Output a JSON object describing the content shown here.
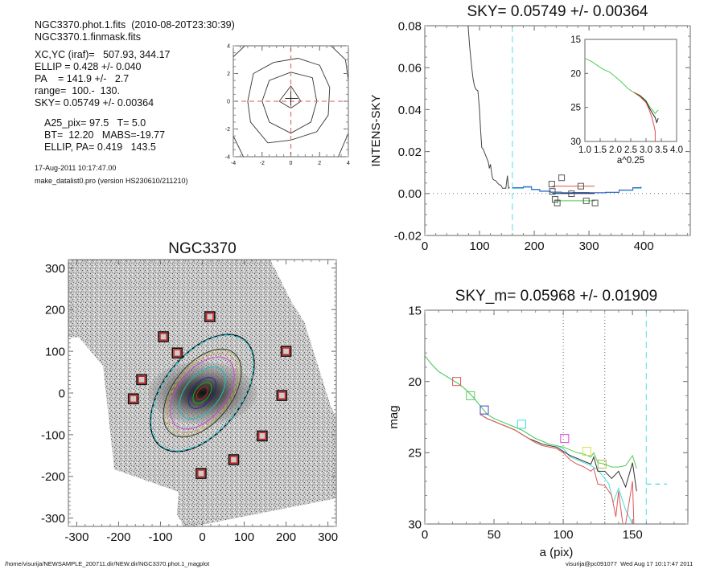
{
  "info_panel": {
    "line1": "NGC3370.phot.1.fits  (2010-08-20T23:30:39)",
    "line2": "NGC3370.1.finmask.fits",
    "params": [
      "XC,YC (iraf)=   507.93, 344.17",
      "ELLIP = 0.428 +/- 0.040",
      "PA    = 141.9 +/-   2.7",
      "range=  100.-  130.",
      "SKY= 0.05749 +/- 0.00364"
    ],
    "derived": [
      "A25_pix= 97.5   T= 5.0",
      "BT=  12.20   MABS=-19.77",
      "ELLIP, PA= 0.419   143.5"
    ],
    "date": "17-Aug-2011 10:17:47.00",
    "version": "make_datalist0.pro (version HS230610/211210)"
  },
  "footer": {
    "path": "/home/visurija/NEWSAMPLE_200711.dir/NEW.dir/NGC3370.phot.1_magplot",
    "user_time": "visurija@pc091077  Wed Aug 17 10:17:47 2011"
  },
  "chart_data": [
    {
      "id": "center-contour",
      "type": "contour",
      "title": "",
      "xlim": [
        -4,
        4
      ],
      "ylim": [
        -4,
        4
      ],
      "xticks": [
        "-4",
        "-2",
        "0",
        "2",
        "4"
      ],
      "yticks": [
        "-4",
        "-2",
        "0",
        "2",
        "4"
      ],
      "center_cross": [
        0,
        0
      ],
      "contours": [
        [
          [
            -0.8,
            0
          ],
          [
            0,
            1.1
          ],
          [
            0.7,
            0
          ],
          [
            0,
            -0.5
          ]
        ],
        [
          [
            -2,
            0
          ],
          [
            -1.5,
            1.5
          ],
          [
            0,
            2.1
          ],
          [
            1.5,
            1.7
          ],
          [
            1.8,
            0
          ],
          [
            1.4,
            -1.5
          ],
          [
            0,
            -2.3
          ],
          [
            -1.5,
            -1.5
          ]
        ],
        [
          [
            -3,
            0
          ],
          [
            -2.6,
            2
          ],
          [
            -1.2,
            2.8
          ],
          [
            0.5,
            3.1
          ],
          [
            2,
            2.6
          ],
          [
            2.7,
            1
          ],
          [
            2.6,
            -1
          ],
          [
            1.8,
            -2.2
          ],
          [
            0,
            -2.8
          ],
          [
            -1.6,
            -3
          ],
          [
            -2.8,
            -1.5
          ]
        ],
        [
          [
            -4,
            3.2
          ],
          [
            -3.2,
            4
          ]
        ],
        [
          [
            2.8,
            4
          ],
          [
            3.8,
            3
          ],
          [
            4,
            1.5
          ]
        ],
        [
          [
            -4,
            -2.5
          ],
          [
            -3.3,
            -4
          ]
        ],
        [
          [
            4,
            -2.3
          ],
          [
            3.3,
            -4
          ]
        ]
      ],
      "crosshair_color": "#e07a7a"
    },
    {
      "id": "intens-sky",
      "type": "line",
      "title": "SKY= 0.05749 +/- 0.00364",
      "xlabel": "",
      "ylabel": "INTENS-SKY",
      "xlim": [
        0,
        485
      ],
      "ylim": [
        -0.02,
        0.08
      ],
      "xticks": [
        "0",
        "100",
        "200",
        "300",
        "400"
      ],
      "yticks": [
        "-0.02",
        "0.00",
        "0.02",
        "0.04",
        "0.06",
        "0.08"
      ],
      "sky_radius_line": 160,
      "profile": {
        "x": [
          79,
          82,
          85,
          88,
          91,
          94,
          97,
          100,
          102,
          104,
          107,
          110,
          113,
          116,
          118,
          120,
          122,
          124,
          126,
          130,
          133,
          136,
          139,
          142,
          145,
          148,
          151,
          153,
          155
        ],
        "y": [
          0.08,
          0.07,
          0.062,
          0.055,
          0.051,
          0.0495,
          0.049,
          0.04,
          0.03,
          0.022,
          0.021,
          0.019,
          0.017,
          0.015,
          0.012,
          0.014,
          0.01,
          0.007,
          0.0065,
          0.006,
          0.005,
          0.0042,
          0.004,
          0.0025,
          0.0025,
          0.0025,
          0.0085,
          0.0025,
          0.003
        ]
      },
      "sky_levels": [
        {
          "color": "#22cccc",
          "x": [
            160,
            175,
            180,
            195,
            210,
            230,
            250,
            270,
            300,
            330,
            355,
            380,
            395
          ],
          "y": [
            0.0025,
            0.0025,
            0.003,
            0.0018,
            0.001,
            0.0005,
            0.0002,
            0.0003,
            0.0003,
            0.0005,
            0.0015,
            0.0025,
            0.003
          ]
        },
        {
          "color": "#4455cc",
          "x": [
            160,
            175,
            180,
            195,
            210,
            230,
            250,
            270,
            300,
            330,
            355,
            380,
            395
          ],
          "y": [
            0.0028,
            0.0028,
            0.0033,
            0.002,
            0.0012,
            0.0007,
            0.0004,
            0.0005,
            0.0004,
            0.0006,
            0.0017,
            0.0028,
            0.0033
          ]
        }
      ],
      "sky_boxes": [
        [
          233,
          0.001
        ],
        [
          232,
          0.0045
        ],
        [
          250,
          0.0075
        ],
        [
          285,
          0.0035
        ],
        [
          268,
          -0.0001
        ],
        [
          238,
          -0.0028
        ],
        [
          242,
          -0.0045
        ],
        [
          295,
          -0.0035
        ],
        [
          311,
          -0.0045
        ]
      ],
      "sky_segments": [
        {
          "color": "#e05050",
          "x": [
            233,
            310
          ],
          "y": [
            0.0035,
            0.0035
          ]
        },
        {
          "color": "#50cc50",
          "x": [
            238,
            311
          ],
          "y": [
            -0.0035,
            -0.0035
          ]
        },
        {
          "color": "#222222",
          "x": [
            233,
            310
          ],
          "y": [
            0.0,
            0.0
          ]
        }
      ],
      "inset": {
        "xlim": [
          1.0,
          4.0
        ],
        "ylim": [
          30,
          15
        ],
        "xticks": [
          "1.0",
          "1.5",
          "2.0",
          "2.5",
          "3.0",
          "3.5",
          "4.0"
        ],
        "yticks": [
          "15",
          "20",
          "25",
          "30"
        ],
        "xlabel": "a^0.25",
        "series": [
          {
            "color": "#50cc50",
            "x": [
              1.0,
              1.2,
              1.4,
              1.6,
              1.8,
              2.0,
              2.2,
              2.4,
              2.6,
              2.8,
              3.0,
              3.1,
              3.2,
              3.3,
              3.35,
              3.4
            ],
            "y": [
              17.8,
              18.2,
              18.8,
              19.4,
              19.8,
              20.5,
              21.3,
              22.2,
              22.8,
              23.2,
              24.0,
              24.8,
              25.3,
              25.9,
              25.6,
              25.4
            ]
          },
          {
            "color": "#222222",
            "x": [
              2.6,
              2.8,
              3.0,
              3.1,
              3.2,
              3.3,
              3.35,
              3.4
            ],
            "y": [
              22.8,
              23.3,
              24.1,
              25.0,
              25.8,
              26.5,
              27.2,
              26.6
            ]
          },
          {
            "color": "#e05050",
            "x": [
              2.6,
              2.8,
              3.0,
              3.1,
              3.2,
              3.25,
              3.3,
              3.3
            ],
            "y": [
              22.8,
              23.4,
              24.3,
              25.3,
              26.6,
              27.5,
              28.5,
              30
            ]
          }
        ]
      }
    },
    {
      "id": "galaxy-image",
      "type": "image",
      "title": "NGC3370",
      "xlim": [
        -320,
        320
      ],
      "ylim": [
        -320,
        320
      ],
      "xticks": [
        "-300",
        "-200",
        "-100",
        "0",
        "100",
        "200",
        "300"
      ],
      "yticks": [
        "-300",
        "-200",
        "-100",
        "0",
        "100",
        "200",
        "300"
      ],
      "ellipse_pa": 141.9,
      "ellipse_ellip": 0.428,
      "isophotes": [
        {
          "color": "#cc2222",
          "a": 18
        },
        {
          "color": "#22aa22",
          "a": 29
        },
        {
          "color": "#2222aa",
          "a": 43
        },
        {
          "color": "#22bbbb",
          "a": 72
        },
        {
          "color": "#cc44cc",
          "a": 100
        },
        {
          "color": "#dd9944",
          "a": 110
        },
        {
          "color": "#aabb55",
          "a": 118
        },
        {
          "color": "#333333",
          "a": 122
        },
        {
          "color": "#111111",
          "a": 162
        },
        {
          "color": "#44ccdd",
          "a": 160
        }
      ],
      "sky_boxes": [
        [
          18,
          183
        ],
        [
          -93,
          135
        ],
        [
          -60,
          96
        ],
        [
          200,
          100
        ],
        [
          -145,
          32
        ],
        [
          -165,
          -14
        ],
        [
          190,
          -6
        ],
        [
          143,
          -103
        ],
        [
          75,
          -160
        ],
        [
          -3,
          -193
        ],
        [
          -50,
          -5
        ]
      ]
    },
    {
      "id": "mag-profile",
      "type": "line",
      "title": "SKY_m=  0.05968 +/- 0.01909",
      "xlabel": "a (pix)",
      "ylabel": "mag",
      "xlim": [
        0,
        190
      ],
      "ylim": [
        30,
        15
      ],
      "xticks": [
        "0",
        "50",
        "100",
        "150"
      ],
      "yticks": [
        "15",
        "20",
        "25",
        "30"
      ],
      "vlines_dotted": [
        100,
        130
      ],
      "vline_dashed": 160,
      "sky_level_segment": {
        "x": [
          160,
          175
        ],
        "y": 27.2
      },
      "series": [
        {
          "name": "cyan",
          "color": "#44dddd",
          "x": [
            0,
            5,
            10,
            15,
            20,
            25,
            30,
            35,
            40,
            45,
            50,
            55,
            60,
            65,
            70,
            75,
            80,
            85,
            90,
            95,
            100,
            105,
            110,
            115,
            120,
            125,
            130,
            133,
            136,
            140,
            145,
            150
          ],
          "y": [
            18.2,
            18.8,
            19.3,
            19.6,
            19.9,
            20.2,
            20.6,
            21.1,
            21.7,
            22.3,
            22.6,
            22.8,
            23.0,
            23.2,
            23.4,
            23.7,
            24.0,
            24.2,
            24.4,
            24.5,
            24.7,
            25.3,
            25.5,
            25.7,
            25.9,
            26.2,
            26.8,
            27.2,
            28.5,
            27.5,
            29.0,
            30
          ]
        },
        {
          "name": "green",
          "color": "#55cc55",
          "x": [
            0,
            5,
            10,
            15,
            20,
            25,
            30,
            35,
            40,
            45,
            50,
            55,
            60,
            65,
            70,
            75,
            80,
            85,
            90,
            95,
            100,
            105,
            110,
            115,
            120,
            122,
            125,
            130,
            135,
            140,
            145,
            150,
            153
          ],
          "y": [
            18.2,
            18.8,
            19.3,
            19.6,
            19.9,
            20.2,
            20.6,
            21.1,
            21.7,
            22.3,
            22.6,
            22.8,
            23.0,
            23.2,
            23.4,
            23.7,
            24.0,
            24.2,
            24.4,
            24.5,
            24.6,
            24.8,
            25.0,
            25.1,
            25.3,
            25.0,
            25.7,
            25.8,
            26.0,
            26.0,
            25.9,
            25.2,
            26.1
          ]
        },
        {
          "name": "black",
          "color": "#333333",
          "x": [
            40,
            45,
            50,
            55,
            60,
            65,
            70,
            75,
            80,
            85,
            90,
            95,
            100,
            105,
            110,
            115,
            120,
            122,
            125,
            130,
            135,
            140,
            145,
            150,
            153
          ],
          "y": [
            22.3,
            22.6,
            22.8,
            23.0,
            23.2,
            23.4,
            23.7,
            24.0,
            24.2,
            24.4,
            24.5,
            24.6,
            24.9,
            25.2,
            25.4,
            25.6,
            25.8,
            25.3,
            26.3,
            26.3,
            26.8,
            26.3,
            27.4,
            25.7,
            27.7
          ]
        },
        {
          "name": "red",
          "color": "#e05555",
          "x": [
            40,
            45,
            50,
            55,
            60,
            65,
            70,
            75,
            80,
            85,
            90,
            95,
            100,
            105,
            110,
            115,
            120,
            122,
            125,
            130,
            135,
            138,
            140,
            143,
            145,
            150,
            151
          ],
          "y": [
            22.3,
            22.6,
            22.8,
            23.0,
            23.2,
            23.4,
            23.7,
            24.0,
            24.3,
            24.5,
            24.6,
            24.7,
            25.0,
            25.5,
            25.8,
            26.0,
            26.3,
            26.1,
            27.2,
            27.3,
            28.0,
            29.5,
            27.7,
            30,
            30,
            27.0,
            30
          ]
        }
      ],
      "boxes": [
        {
          "color": "#e05555",
          "x": 23,
          "y": 20.0
        },
        {
          "color": "#55cc55",
          "x": 33,
          "y": 21.0
        },
        {
          "color": "#4444cc",
          "x": 43,
          "y": 22.0
        },
        {
          "color": "#44dddd",
          "x": 70,
          "y": 23.0
        },
        {
          "color": "#dd44dd",
          "x": 101,
          "y": 24.0
        },
        {
          "color": "#dddd44",
          "x": 117,
          "y": 24.9
        },
        {
          "color": "#aabb44",
          "x": 128,
          "y": 25.8
        }
      ]
    }
  ]
}
